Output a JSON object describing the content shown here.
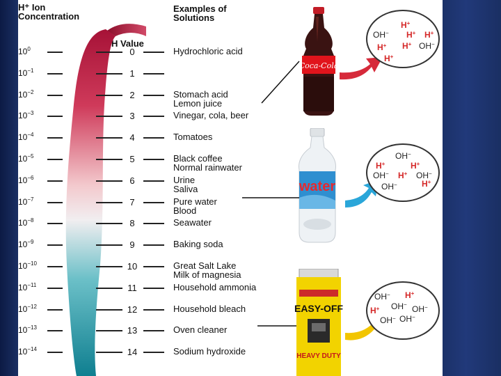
{
  "headers": {
    "concentration": [
      "H⁺ Ion",
      "Concentration"
    ],
    "examples": [
      "Examples of",
      "Solutions"
    ],
    "ph": "pH Value"
  },
  "rows": [
    {
      "conc_base": "10",
      "conc_exp": "0",
      "ph": "0",
      "solutions": [
        "Hydrochloric acid"
      ]
    },
    {
      "conc_base": "10",
      "conc_exp": "−1",
      "ph": "1",
      "solutions": []
    },
    {
      "conc_base": "10",
      "conc_exp": "−2",
      "ph": "2",
      "solutions": [
        "Stomach acid",
        "Lemon juice"
      ]
    },
    {
      "conc_base": "10",
      "conc_exp": "−3",
      "ph": "3",
      "solutions": [
        "Vinegar, cola, beer"
      ]
    },
    {
      "conc_base": "10",
      "conc_exp": "−4",
      "ph": "4",
      "solutions": [
        "Tomatoes"
      ]
    },
    {
      "conc_base": "10",
      "conc_exp": "−5",
      "ph": "5",
      "solutions": [
        "Black coffee",
        "Normal rainwater"
      ]
    },
    {
      "conc_base": "10",
      "conc_exp": "−6",
      "ph": "6",
      "solutions": [
        "Urine",
        "Saliva"
      ]
    },
    {
      "conc_base": "10",
      "conc_exp": "−7",
      "ph": "7",
      "solutions": [
        "Pure water",
        "Blood"
      ]
    },
    {
      "conc_base": "10",
      "conc_exp": "−8",
      "ph": "8",
      "solutions": [
        "Seawater"
      ]
    },
    {
      "conc_base": "10",
      "conc_exp": "−9",
      "ph": "9",
      "solutions": [
        "Baking soda"
      ]
    },
    {
      "conc_base": "10",
      "conc_exp": "−10",
      "ph": "10",
      "solutions": [
        "Great Salt Lake",
        "Milk of magnesia"
      ]
    },
    {
      "conc_base": "10",
      "conc_exp": "−11",
      "ph": "11",
      "solutions": [
        "Household ammonia"
      ]
    },
    {
      "conc_base": "10",
      "conc_exp": "−12",
      "ph": "12",
      "solutions": [
        "Household bleach"
      ]
    },
    {
      "conc_base": "10",
      "conc_exp": "−13",
      "ph": "13",
      "solutions": [
        "Oven cleaner"
      ]
    },
    {
      "conc_base": "10",
      "conc_exp": "−14",
      "ph": "14",
      "solutions": [
        "Sodium hydroxide"
      ]
    }
  ],
  "products": {
    "cola_label": "Coca-Cola",
    "water_label": "water",
    "cleaner_label": "EASY-OFF",
    "cleaner_sub": "HEAVY DUTY"
  },
  "circles": [
    {
      "ions": [
        [
          "H",
          "+"
        ],
        [
          "OH",
          "−"
        ],
        [
          "H",
          "+"
        ],
        [
          "H",
          "+"
        ],
        [
          "H",
          "+"
        ],
        [
          "H",
          "+"
        ],
        [
          "OH",
          "−"
        ],
        [
          "H",
          "+"
        ]
      ]
    },
    {
      "ions": [
        [
          "OH",
          "−"
        ],
        [
          "H",
          "+"
        ],
        [
          "H",
          "+"
        ],
        [
          "OH",
          "−"
        ],
        [
          "H",
          "+"
        ],
        [
          "OH",
          "−"
        ],
        [
          "OH",
          "−"
        ],
        [
          "H",
          "+"
        ]
      ]
    },
    {
      "ions": [
        [
          "OH",
          "−"
        ],
        [
          "H",
          "+"
        ],
        [
          "H",
          "+"
        ],
        [
          "OH",
          "−"
        ],
        [
          "OH",
          "−"
        ],
        [
          "OH",
          "−"
        ],
        [
          "OH",
          "−"
        ]
      ]
    }
  ],
  "colors": {
    "acid": "#b3153a",
    "mid": "#f0c7cc",
    "base": "#1a8fa0",
    "arrow_acid": "#d62a3a",
    "arrow_neutral": "#2aa6d9",
    "arrow_base": "#f2c500"
  }
}
